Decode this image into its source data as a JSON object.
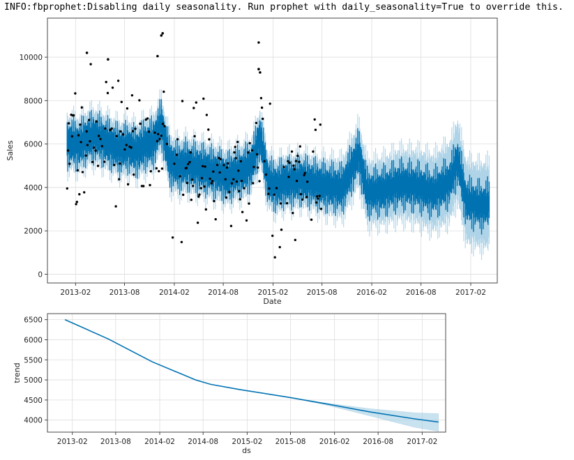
{
  "log_line": "INFO:fbprophet:Disabling daily seasonality. Run prophet with daily_seasonality=True to override this.",
  "colors": {
    "forecast": "#0072b2",
    "uncertainty": "#a6cfe6",
    "observed": "#000000",
    "grid": "#dddddd"
  },
  "chart_data": [
    {
      "type": "line",
      "title": "",
      "xlabel": "Date",
      "ylabel": "Sales",
      "xlim": [
        "2012-10-20",
        "2017-05-10"
      ],
      "ylim": [
        -400,
        11800
      ],
      "xticks": [
        "2013-02",
        "2013-08",
        "2014-02",
        "2014-08",
        "2015-02",
        "2015-08",
        "2016-02",
        "2016-08",
        "2017-02"
      ],
      "yticks": [
        0,
        2000,
        4000,
        6000,
        8000,
        10000
      ],
      "grid": true,
      "history_range": [
        "2013-01-01",
        "2015-07-31"
      ],
      "forecast_range": [
        "2013-01-01",
        "2017-04-10"
      ],
      "weekly_mean_sales": [
        [
          "2013-01",
          6100
        ],
        [
          "2013-02",
          6000
        ],
        [
          "2013-03",
          6300
        ],
        [
          "2013-04",
          6400
        ],
        [
          "2013-05",
          6200
        ],
        [
          "2013-06",
          6000
        ],
        [
          "2013-07",
          5800
        ],
        [
          "2013-08",
          5900
        ],
        [
          "2013-09",
          5700
        ],
        [
          "2013-10",
          6000
        ],
        [
          "2013-11",
          6100
        ],
        [
          "2013-12",
          7000
        ],
        [
          "2014-01",
          5200
        ],
        [
          "2014-02",
          5000
        ],
        [
          "2014-03",
          5100
        ],
        [
          "2014-04",
          5000
        ],
        [
          "2014-05",
          4900
        ],
        [
          "2014-06",
          4800
        ],
        [
          "2014-07",
          4700
        ],
        [
          "2014-08",
          4500
        ],
        [
          "2014-09",
          4700
        ],
        [
          "2014-10",
          4800
        ],
        [
          "2014-11",
          5100
        ],
        [
          "2014-12",
          6400
        ],
        [
          "2015-01",
          4300
        ],
        [
          "2015-02",
          4100
        ],
        [
          "2015-03",
          4300
        ],
        [
          "2015-04",
          4300
        ],
        [
          "2015-05",
          4400
        ],
        [
          "2015-06",
          4300
        ],
        [
          "2015-07",
          4200
        ]
      ],
      "notable_points": [
        {
          "date": "2013-03-15",
          "value": 10200
        },
        {
          "date": "2013-06-01",
          "value": 9900
        },
        {
          "date": "2013-12-01",
          "value": 10050
        },
        {
          "date": "2013-12-15",
          "value": 11000
        },
        {
          "date": "2013-12-20",
          "value": 11100
        },
        {
          "date": "2014-12-10",
          "value": 9450
        },
        {
          "date": "2014-12-15",
          "value": 9300
        }
      ]
    },
    {
      "type": "line",
      "title": "",
      "xlabel": "ds",
      "ylabel": "trend",
      "xlim": [
        "2012-10-20",
        "2017-05-10"
      ],
      "ylim": [
        3700,
        6650
      ],
      "xticks": [
        "2013-02",
        "2013-08",
        "2014-02",
        "2014-08",
        "2015-02",
        "2015-08",
        "2016-02",
        "2016-08",
        "2017-02"
      ],
      "yticks": [
        4000,
        4500,
        5000,
        5500,
        6000,
        6500
      ],
      "grid": true,
      "series": [
        {
          "values": [
            [
              "2013-01-01",
              6500
            ],
            [
              "2013-07-01",
              6020
            ],
            [
              "2014-01-01",
              5450
            ],
            [
              "2014-07-01",
              5000
            ],
            [
              "2014-09-01",
              4890
            ],
            [
              "2015-01-01",
              4760
            ],
            [
              "2015-07-31",
              4560
            ],
            [
              "2016-01-01",
              4400
            ],
            [
              "2016-07-01",
              4200
            ],
            [
              "2017-01-01",
              4030
            ],
            [
              "2017-04-10",
              3950
            ]
          ],
          "upper": [
            [
              "2015-07-31",
              4560
            ],
            [
              "2016-01-01",
              4420
            ],
            [
              "2016-07-01",
              4280
            ],
            [
              "2017-01-01",
              4180
            ],
            [
              "2017-04-10",
              4160
            ]
          ],
          "lower": [
            [
              "2015-07-31",
              4560
            ],
            [
              "2016-01-01",
              4370
            ],
            [
              "2016-07-01",
              4100
            ],
            [
              "2017-01-01",
              3820
            ],
            [
              "2017-04-10",
              3720
            ]
          ]
        }
      ]
    }
  ]
}
